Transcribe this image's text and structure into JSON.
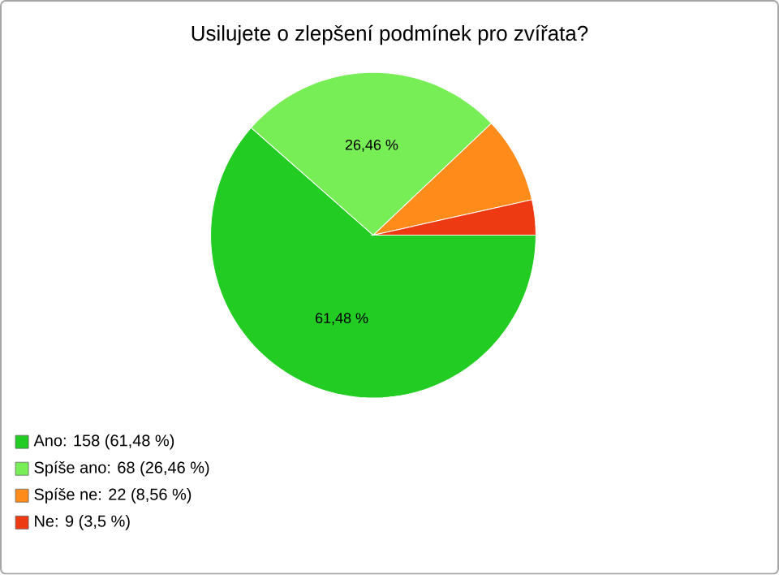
{
  "chart_data": {
    "type": "pie",
    "title": "Usilujete o zlepšení podmínek pro zvířata?",
    "categories": [
      "Ano: 158 (61,48 %)",
      "Spíše ano: 68 (26,46 %)",
      "Spíše ne: 22 (8,56 %)",
      "Ne: 9 (3,5 %)"
    ],
    "values": [
      61.48,
      26.46,
      8.56,
      3.5
    ],
    "colors": [
      "#22cc22",
      "#77ee55",
      "#ff8c1a",
      "#ee3a12"
    ],
    "value_labels": [
      "61,48 %",
      "26,46 %",
      null,
      null
    ],
    "legend": "bottom left"
  }
}
